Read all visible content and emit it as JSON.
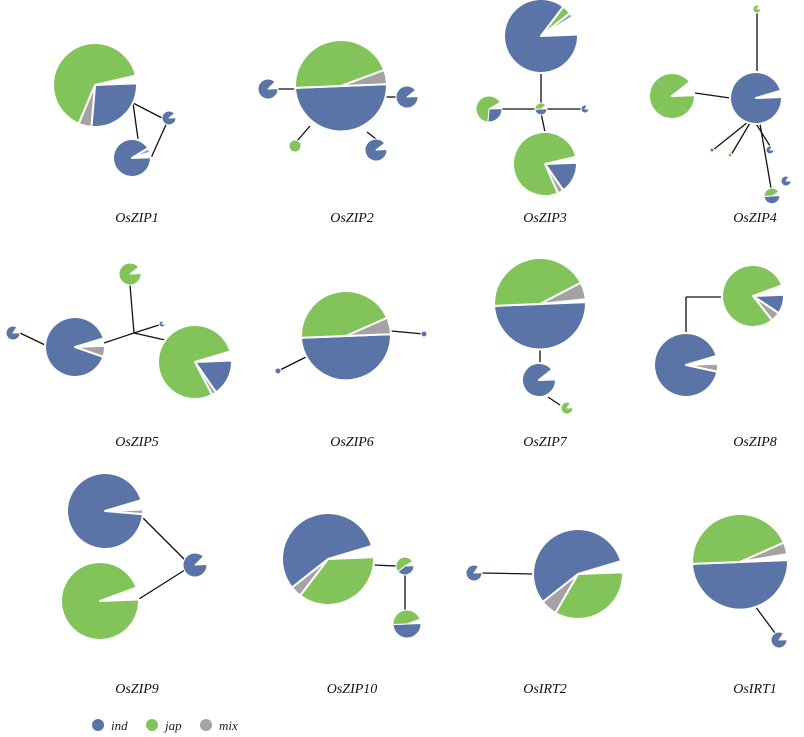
{
  "colors": {
    "ind": "#5b74a8",
    "jap": "#82c45a",
    "mix": "#a6a1a3",
    "edge": "#111111",
    "separator": "#ffffff"
  },
  "legend": [
    {
      "key": "ind",
      "label": "ind"
    },
    {
      "key": "jap",
      "label": "jap"
    },
    {
      "key": "mix",
      "label": "mix"
    }
  ],
  "panels": [
    {
      "id": "OsZIP1",
      "label": "OsZIP1"
    },
    {
      "id": "OsZIP2",
      "label": "OsZIP2"
    },
    {
      "id": "OsZIP3",
      "label": "OsZIP3"
    },
    {
      "id": "OsZIP4",
      "label": "OsZIP4"
    },
    {
      "id": "OsZIP5",
      "label": "OsZIP5"
    },
    {
      "id": "OsZIP6",
      "label": "OsZIP6"
    },
    {
      "id": "OsZIP7",
      "label": "OsZIP7"
    },
    {
      "id": "OsZIP8",
      "label": "OsZIP8"
    },
    {
      "id": "OsZIP9",
      "label": "OsZIP9"
    },
    {
      "id": "OsZIP10",
      "label": "OsZIP10"
    },
    {
      "id": "OsIRT2",
      "label": "OsIRT2"
    },
    {
      "id": "OsIRT1",
      "label": "OsIRT1"
    }
  ]
}
